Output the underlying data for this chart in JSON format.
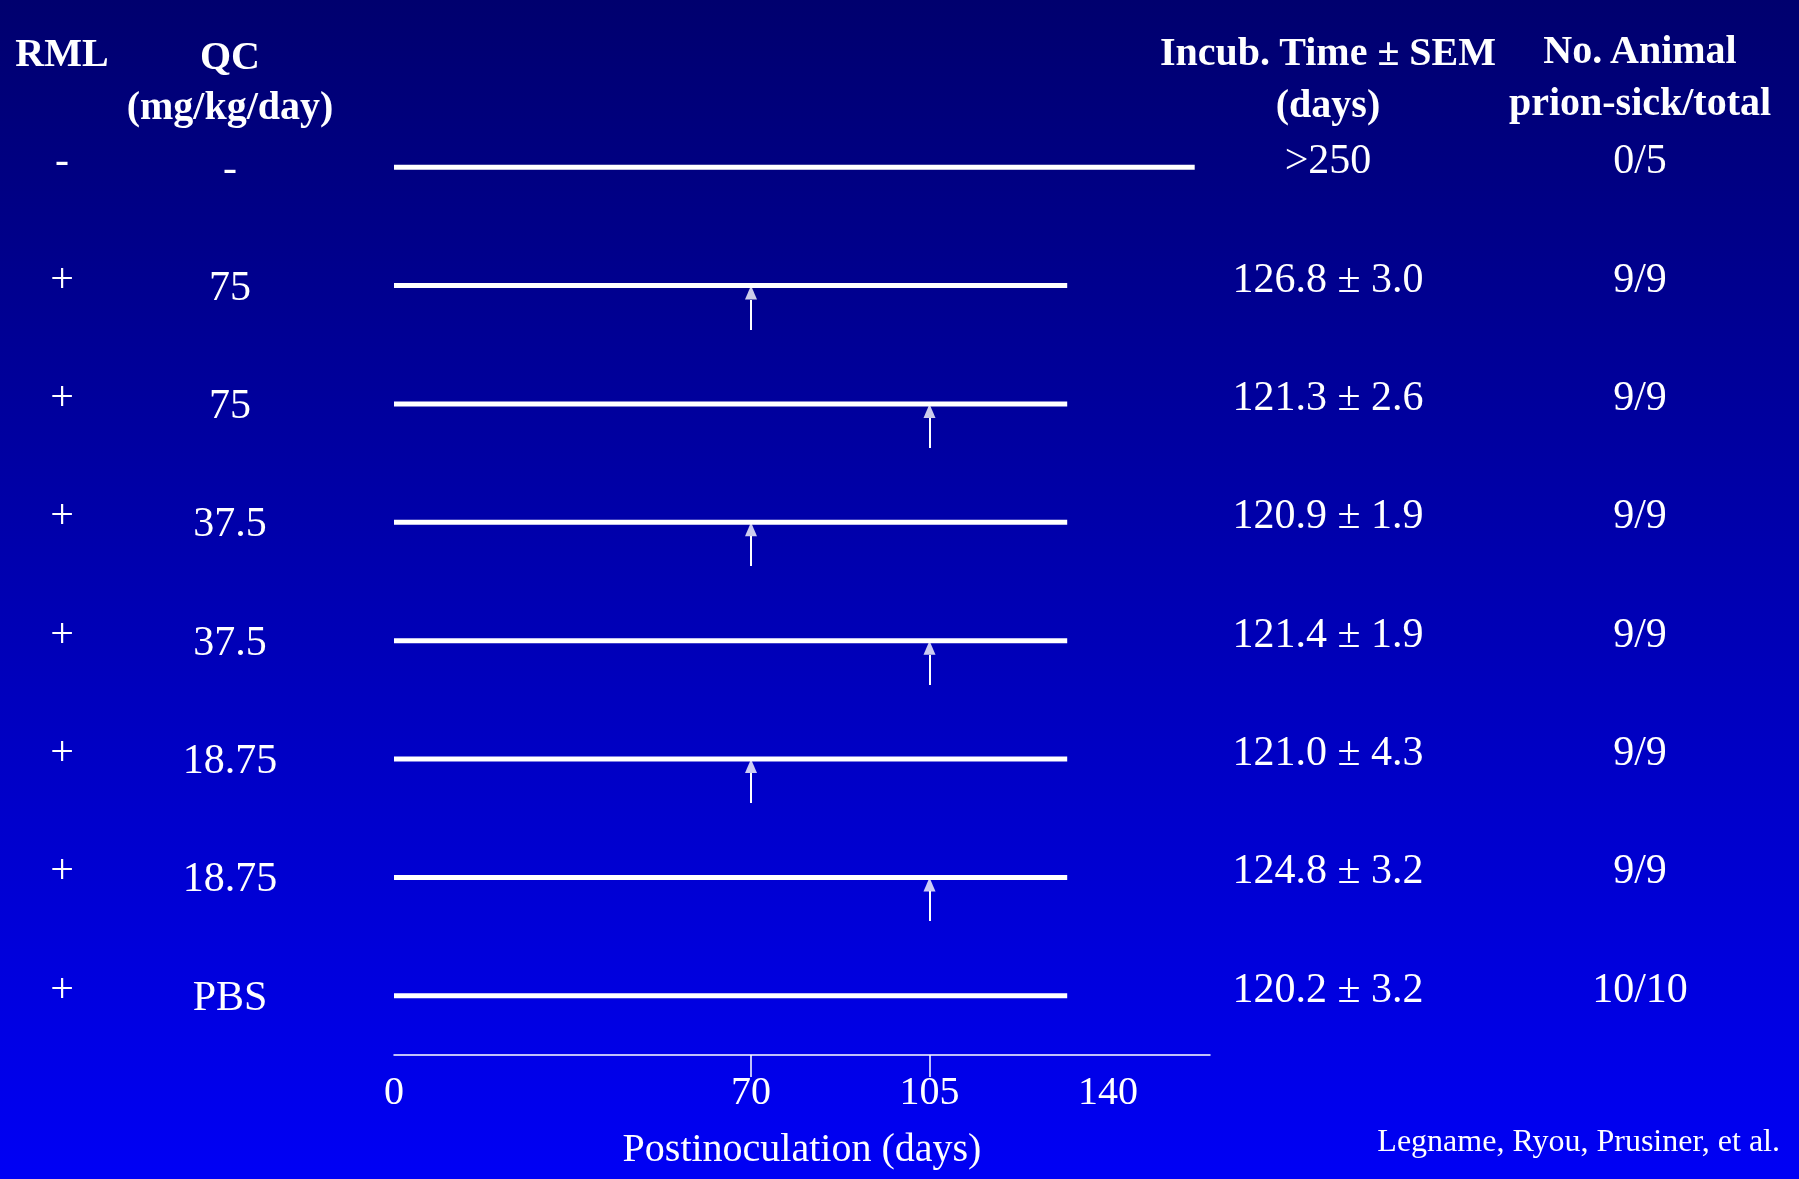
{
  "chart_data": {
    "type": "bar",
    "orientation": "horizontal",
    "categories": [
      "-",
      "75",
      "75",
      "37.5",
      "37.5",
      "18.75",
      "18.75",
      "PBS"
    ],
    "ylabel": "QC\n(mg/kg/day)",
    "xlabel": "Postinoculation (days)",
    "xlim": [
      0,
      160
    ],
    "xticks": [
      0,
      70,
      105,
      140
    ],
    "grid": false,
    "series": [
      {
        "color": "#ffffff",
        "values": [
          157,
          132,
          132,
          132,
          132,
          132,
          132,
          132
        ]
      },
      {
        "type": "scatter",
        "color": "#ffffff",
        "marker": "triangle",
        "values": [
          null,
          70,
          105,
          70,
          105,
          70,
          105,
          null
        ]
      }
    ],
    "annotations": [
      "RML",
      "-",
      "+",
      "+",
      "+",
      "+",
      "+",
      "+",
      "+",
      "Incub. Time ± SEM\n(days)",
      ">250",
      "126.8 ± 3.0",
      "121.3 ± 2.6",
      "120.9 ± 1.9",
      "121.4 ± 1.9",
      "121.0 ± 4.3",
      "124.8 ± 3.2",
      "120.2 ± 3.2",
      "No. Animal\nprion-sick/total",
      "0/5",
      "9/9",
      "9/9",
      "9/9",
      "9/9",
      "9/9",
      "9/9",
      "10/10",
      "Legname, Ryou, Prusiner, et al."
    ]
  }
}
